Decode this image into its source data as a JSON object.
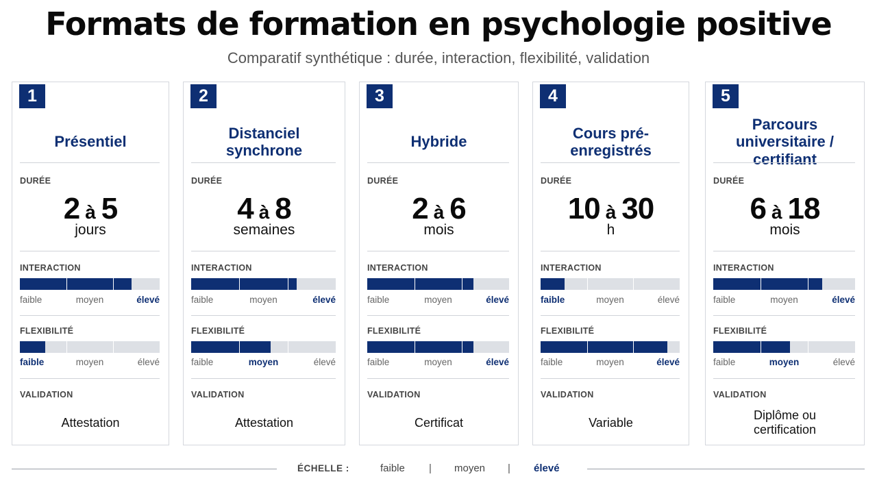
{
  "title": "Formats de formation en psychologie positive",
  "subtitle": "Comparatif synthétique : durée, interaction, flexibilité, validation",
  "labels": {
    "duration": "DURÉE",
    "interaction": "INTERACTION",
    "flexibility": "FLEXIBILITÉ",
    "validation": "VALIDATION",
    "connector": "à"
  },
  "scale_terms": [
    "faible",
    "moyen",
    "élevé"
  ],
  "legend": {
    "label": "ÉCHELLE :",
    "low": "faible",
    "mid": "moyen",
    "high": "élevé",
    "separator": "|"
  },
  "colors": {
    "accent": "#0e2f73",
    "bar_track": "#dde0e5",
    "border": "#d4d7dd"
  },
  "cards": [
    {
      "number": "1",
      "title": "Présentiel",
      "duration": {
        "from": "2",
        "to": "5",
        "unit": "jours"
      },
      "interaction": {
        "level": 0.8,
        "active": 2
      },
      "flexibility": {
        "level": 0.18,
        "active": 0
      },
      "validation": "Attestation"
    },
    {
      "number": "2",
      "title": "Distanciel synchrone",
      "duration": {
        "from": "4",
        "to": "8",
        "unit": "semaines"
      },
      "interaction": {
        "level": 0.73,
        "active": 2
      },
      "flexibility": {
        "level": 0.55,
        "active": 1
      },
      "validation": "Attestation"
    },
    {
      "number": "3",
      "title": "Hybride",
      "duration": {
        "from": "2",
        "to": "6",
        "unit": "mois"
      },
      "interaction": {
        "level": 0.75,
        "active": 2
      },
      "flexibility": {
        "level": 0.75,
        "active": 2
      },
      "validation": "Certificat"
    },
    {
      "number": "4",
      "title": "Cours pré-enregistrés",
      "duration": {
        "from": "10",
        "to": "30",
        "unit": "h"
      },
      "interaction": {
        "level": 0.17,
        "active": 0
      },
      "flexibility": {
        "level": 0.91,
        "active": 2
      },
      "validation": "Variable"
    },
    {
      "number": "5",
      "title": "Parcours universitaire / certifiant",
      "duration": {
        "from": "6",
        "to": "18",
        "unit": "mois"
      },
      "interaction": {
        "level": 0.77,
        "active": 2
      },
      "flexibility": {
        "level": 0.54,
        "active": 1
      },
      "validation": "Diplôme ou certification"
    }
  ]
}
